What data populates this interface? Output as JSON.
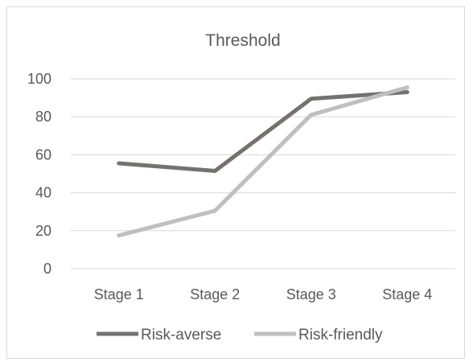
{
  "chart_data": {
    "type": "line",
    "title": "Threshold",
    "xlabel": "",
    "ylabel": "",
    "categories": [
      "Stage 1",
      "Stage 2",
      "Stage 3",
      "Stage 4"
    ],
    "series": [
      {
        "name": "Risk-averse",
        "values": [
          55.5,
          51.5,
          89.5,
          93
        ],
        "color": "#767171"
      },
      {
        "name": "Risk-friendly",
        "values": [
          17.5,
          30.5,
          81,
          95.5
        ],
        "color": "#bfbfbf"
      }
    ],
    "ylim": [
      0,
      100
    ],
    "yticks": [
      "0",
      "20",
      "40",
      "60",
      "80",
      "100"
    ],
    "grid": true,
    "legend": "bottom"
  }
}
